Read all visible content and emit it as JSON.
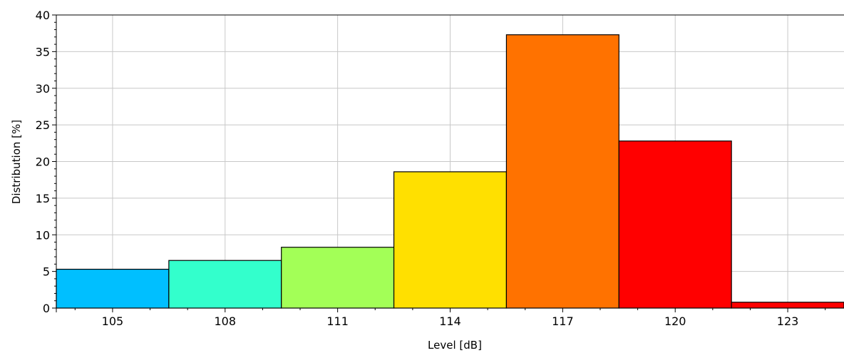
{
  "chart_data": {
    "type": "bar",
    "xlabel": "Level [dB]",
    "ylabel": "Distribution [%]",
    "ylim": [
      0,
      40
    ],
    "xlim": [
      103.5,
      124.5
    ],
    "grid": true,
    "x_ticks": [
      105,
      108,
      111,
      114,
      117,
      120,
      123
    ],
    "y_ticks": [
      0,
      5,
      10,
      15,
      20,
      25,
      30,
      35,
      40
    ],
    "bin_width": 3,
    "categories": [
      "105",
      "108",
      "111",
      "114",
      "117",
      "120",
      "123"
    ],
    "bins": [
      {
        "center": 105,
        "value": 5.3,
        "color": "#00BFFF"
      },
      {
        "center": 108,
        "value": 6.5,
        "color": "#33FFCC"
      },
      {
        "center": 111,
        "value": 8.3,
        "color": "#A3FF57"
      },
      {
        "center": 114,
        "value": 18.6,
        "color": "#FFE000"
      },
      {
        "center": 117,
        "value": 37.3,
        "color": "#FF7200"
      },
      {
        "center": 120,
        "value": 22.8,
        "color": "#FF0000"
      },
      {
        "center": 123,
        "value": 0.8,
        "color": "#FF0000"
      }
    ]
  }
}
